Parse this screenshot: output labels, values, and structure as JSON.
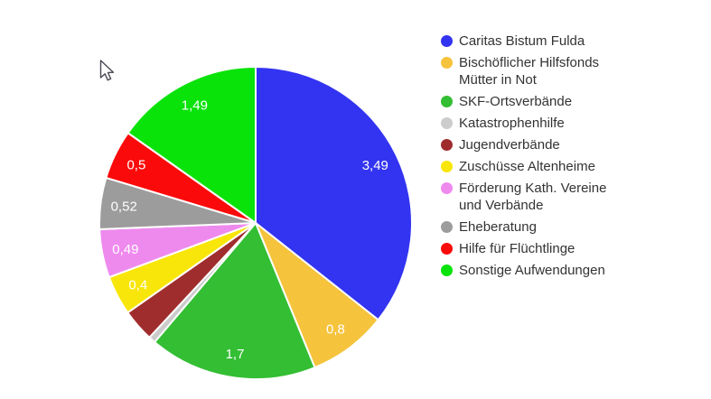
{
  "page": {
    "background_color": "#ffffff",
    "text_color": "#333333",
    "slice_label_color": "#ffffff"
  },
  "chart_data": {
    "type": "pie",
    "title": "",
    "legend_position": "right",
    "decimal_style": "comma",
    "slices": [
      {
        "name": "Caritas Bistum Fulda",
        "value": 3.49,
        "label": "3,49",
        "color": "#3333F2"
      },
      {
        "name": "Bischöflicher Hilfsfonds Mütter in Not",
        "value": 0.8,
        "label": "0,8",
        "color": "#F5C33C"
      },
      {
        "name": "SKF-Ortsverbände",
        "value": 1.7,
        "label": "1,7",
        "color": "#33BE33"
      },
      {
        "name": "Katastrophenhilfe",
        "value": 0.07,
        "label": "",
        "color": "#CCCCCC"
      },
      {
        "name": "Jugendverbände",
        "value": 0.33,
        "label": "",
        "color": "#A02D2D"
      },
      {
        "name": "Zuschüsse Altenheime",
        "value": 0.4,
        "label": "0,4",
        "color": "#F8E60A"
      },
      {
        "name": "Förderung Kath. Vereine und Verbände",
        "value": 0.49,
        "label": "0,49",
        "color": "#EE8AEE"
      },
      {
        "name": "Eheberatung",
        "value": 0.52,
        "label": "0,52",
        "color": "#9C9C9C"
      },
      {
        "name": "Hilfe für Flüchtlinge",
        "value": 0.5,
        "label": "0,5",
        "color": "#FA0A0A"
      },
      {
        "name": "Sonstige Aufwendungen",
        "value": 1.49,
        "label": "1,49",
        "color": "#0AE30A"
      }
    ]
  }
}
